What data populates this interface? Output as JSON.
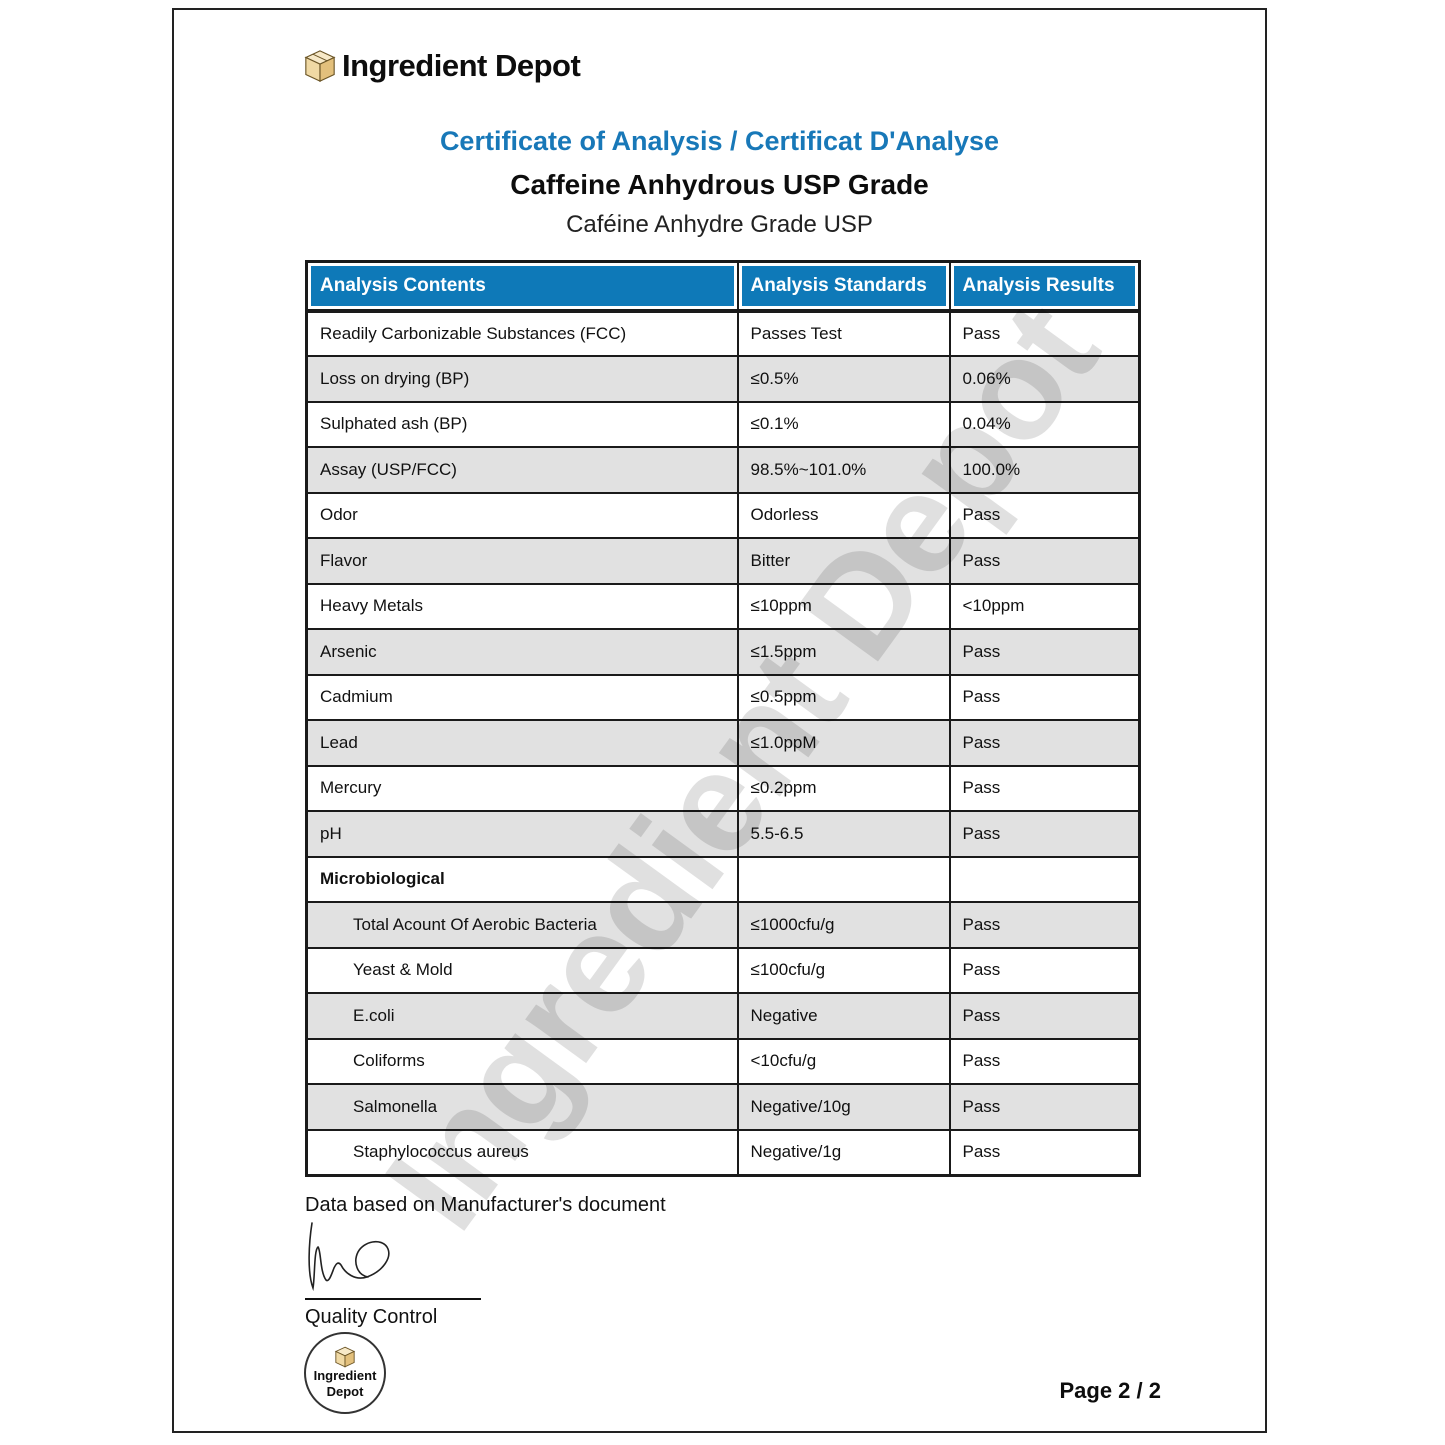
{
  "brand": {
    "name": "Ingredient Depot"
  },
  "header": {
    "title": "Certificate of Analysis / Certificat D'Analyse",
    "product_en": "Caffeine Anhydrous USP Grade",
    "product_fr": "Caféine Anhydre Grade USP"
  },
  "colors": {
    "header_blue": "#0e79b8",
    "title_blue": "#1878b8",
    "row_shade": "#e1e1e1",
    "box_tan_front": "#f0d9a4",
    "box_tan_side": "#e3c07c",
    "box_tan_top": "#f7e9c8"
  },
  "table": {
    "headers": [
      "Analysis Contents",
      "Analysis Standards",
      "Analysis Results"
    ],
    "rows": [
      {
        "content": "Readily Carbonizable Substances (FCC)",
        "standard": "Passes Test",
        "result": "Pass",
        "shaded": false,
        "bold": false,
        "indent": false
      },
      {
        "content": "Loss on drying (BP)",
        "standard": "≤0.5%",
        "result": "0.06%",
        "shaded": true,
        "bold": false,
        "indent": false
      },
      {
        "content": "Sulphated ash (BP)",
        "standard": "≤0.1%",
        "result": "0.04%",
        "shaded": false,
        "bold": false,
        "indent": false
      },
      {
        "content": "Assay (USP/FCC)",
        "standard": "98.5%~101.0%",
        "result": "100.0%",
        "shaded": true,
        "bold": false,
        "indent": false
      },
      {
        "content": "Odor",
        "standard": "Odorless",
        "result": "Pass",
        "shaded": false,
        "bold": false,
        "indent": false
      },
      {
        "content": "Flavor",
        "standard": "Bitter",
        "result": "Pass",
        "shaded": true,
        "bold": false,
        "indent": false
      },
      {
        "content": "Heavy Metals",
        "standard": "≤10ppm",
        "result": "<10ppm",
        "shaded": false,
        "bold": false,
        "indent": false
      },
      {
        "content": "Arsenic",
        "standard": "≤1.5ppm",
        "result": "Pass",
        "shaded": true,
        "bold": false,
        "indent": false
      },
      {
        "content": "Cadmium",
        "standard": "≤0.5ppm",
        "result": "Pass",
        "shaded": false,
        "bold": false,
        "indent": false
      },
      {
        "content": "Lead",
        "standard": "≤1.0ppM",
        "result": "Pass",
        "shaded": true,
        "bold": false,
        "indent": false
      },
      {
        "content": "Mercury",
        "standard": "≤0.2ppm",
        "result": "Pass",
        "shaded": false,
        "bold": false,
        "indent": false
      },
      {
        "content": "pH",
        "standard": "5.5-6.5",
        "result": "Pass",
        "shaded": true,
        "bold": false,
        "indent": false
      },
      {
        "content": "Microbiological",
        "standard": "",
        "result": "",
        "shaded": false,
        "bold": true,
        "indent": false
      },
      {
        "content": "Total Acount Of Aerobic Bacteria",
        "standard": "≤1000cfu/g",
        "result": "Pass",
        "shaded": true,
        "bold": false,
        "indent": true
      },
      {
        "content": "Yeast & Mold",
        "standard": "≤100cfu/g",
        "result": "Pass",
        "shaded": false,
        "bold": false,
        "indent": true
      },
      {
        "content": "E.coli",
        "standard": "Negative",
        "result": "Pass",
        "shaded": true,
        "bold": false,
        "indent": true
      },
      {
        "content": "Coliforms",
        "standard": "<10cfu/g",
        "result": "Pass",
        "shaded": false,
        "bold": false,
        "indent": true
      },
      {
        "content": "Salmonella",
        "standard": "Negative/10g",
        "result": "Pass",
        "shaded": true,
        "bold": false,
        "indent": true
      },
      {
        "content": "Staphylococcus aureus",
        "standard": "Negative/1g",
        "result": "Pass",
        "shaded": false,
        "bold": false,
        "indent": true
      }
    ]
  },
  "footer": {
    "note": "Data based on Manufacturer's document",
    "signature_label": "Quality Control",
    "stamp_line1": "Ingredient",
    "stamp_line2": "Depot",
    "page_number": "Page 2 / 2"
  },
  "watermark": {
    "text": "Ingredient Depot"
  }
}
